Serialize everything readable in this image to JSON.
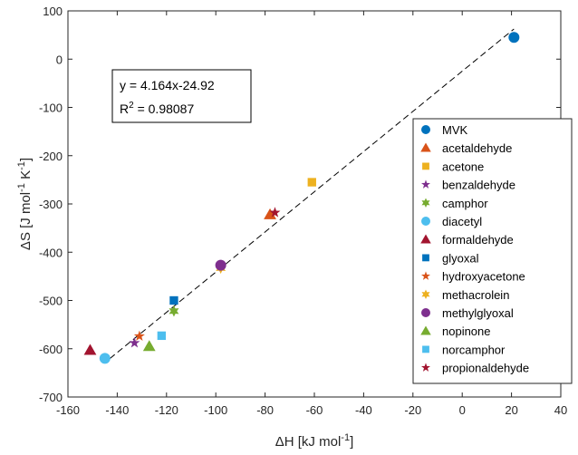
{
  "chart_data": {
    "type": "scatter",
    "xlabel": {
      "base": "ΔH [kJ mol",
      "sup": "-1",
      "tail": "]"
    },
    "ylabel": {
      "base": "ΔS [J mol",
      "sup1": "-1",
      "mid": " K",
      "sup2": "-1",
      "tail": "]"
    },
    "xlim": [
      -160,
      40
    ],
    "ylim": [
      -700,
      100
    ],
    "xticks": [
      -160,
      -140,
      -120,
      -100,
      -80,
      -60,
      -40,
      -20,
      0,
      20,
      40
    ],
    "yticks": [
      -700,
      -600,
      -500,
      -400,
      -300,
      -200,
      -100,
      0,
      100
    ],
    "grid": false,
    "legend_position": "right",
    "annotation": {
      "line1": "y = 4.164x-24.92",
      "line2_base": "R",
      "line2_sup": "2",
      "line2_tail": " = 0.98087"
    },
    "fit_line": {
      "slope": 4.164,
      "intercept": -24.92,
      "x_range": [
        -143,
        21
      ]
    },
    "series": [
      {
        "name": "MVK",
        "marker": "circle",
        "color": "#0072BD",
        "x": 21,
        "y": 45
      },
      {
        "name": "acetaldehyde",
        "marker": "triangle",
        "color": "#D95319",
        "x": -78,
        "y": -322
      },
      {
        "name": "acetone",
        "marker": "square",
        "color": "#EDB120",
        "x": -61,
        "y": -255
      },
      {
        "name": "benzaldehyde",
        "marker": "star",
        "color": "#7E2F8E",
        "x": -133,
        "y": -588
      },
      {
        "name": "camphor",
        "marker": "hexagram",
        "color": "#77AC30",
        "x": -117,
        "y": -522
      },
      {
        "name": "diacetyl",
        "marker": "circle",
        "color": "#4DBEEE",
        "x": -145,
        "y": -620
      },
      {
        "name": "formaldehyde",
        "marker": "triangle",
        "color": "#A2142F",
        "x": -151,
        "y": -603
      },
      {
        "name": "glyoxal",
        "marker": "square",
        "color": "#0072BD",
        "x": -117,
        "y": -500
      },
      {
        "name": "hydroxyacetone",
        "marker": "star",
        "color": "#D95319",
        "x": -131,
        "y": -574
      },
      {
        "name": "methacrolein",
        "marker": "hexagram",
        "color": "#EDB120",
        "x": -98,
        "y": -433
      },
      {
        "name": "methylglyoxal",
        "marker": "circle",
        "color": "#7E2F8E",
        "x": -98,
        "y": -427
      },
      {
        "name": "nopinone",
        "marker": "triangle",
        "color": "#77AC30",
        "x": -127,
        "y": -595
      },
      {
        "name": "norcamphor",
        "marker": "square",
        "color": "#4DBEEE",
        "x": -122,
        "y": -573
      },
      {
        "name": "propionaldehyde",
        "marker": "star",
        "color": "#A2142F",
        "x": -76,
        "y": -318
      }
    ]
  }
}
